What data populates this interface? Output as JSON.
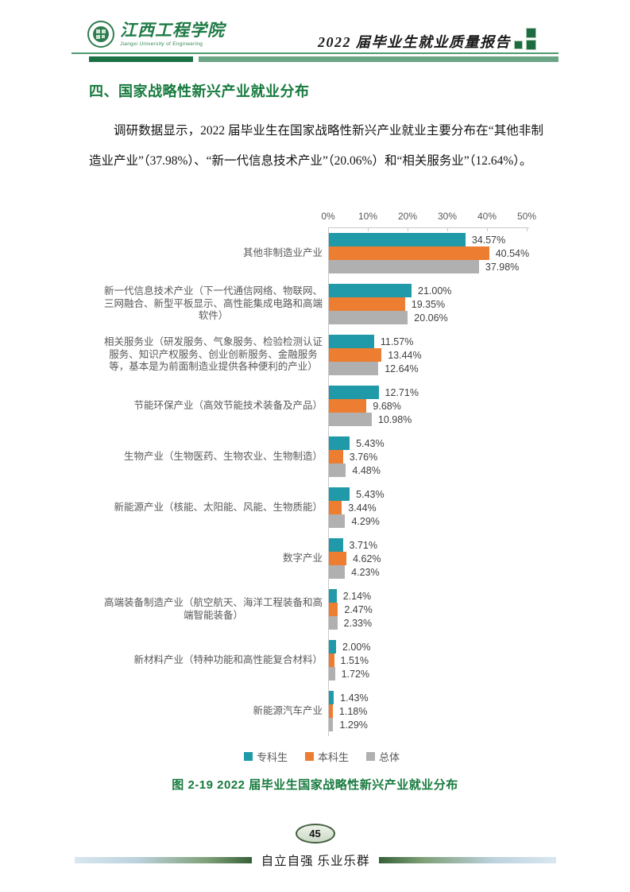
{
  "header": {
    "logo_cn": "江西工程学院",
    "logo_en": "Jiangxi University of Engineering",
    "report_title": "2022 届毕业生就业质量报告"
  },
  "section_title": "四、国家战略性新兴产业就业分布",
  "paragraph": "调研数据显示，2022 届毕业生在国家战略性新兴产业就业主要分布在“其他非制造业产业”（37.98%）、“新一代信息技术产业”（20.06%）和“相关服务业”（12.64%）。",
  "chart_data": {
    "type": "bar",
    "orientation": "horizontal-grouped",
    "title": "",
    "categories": [
      "其他非制造业产业",
      "新一代信息技术产业（下一代通信网络、物联网、三网融合、新型平板显示、高性能集成电路和高端软件）",
      "相关服务业（研发服务、气象服务、检验检测认证服务、知识产权服务、创业创新服务、金融服务等，基本是为前面制造业提供各种便利的产业）",
      "节能环保产业（高效节能技术装备及产品）",
      "生物产业（生物医药、生物农业、生物制造）",
      "新能源产业（核能、太阳能、风能、生物质能）",
      "数字产业",
      "高端装备制造产业（航空航天、海洋工程装备和高端智能装备）",
      "新材料产业（特种功能和高性能复合材料）",
      "新能源汽车产业"
    ],
    "series": [
      {
        "name": "专科生",
        "color": "#2099A8",
        "values": [
          34.57,
          21.0,
          11.57,
          12.71,
          5.43,
          5.43,
          3.71,
          2.14,
          2.0,
          1.43
        ]
      },
      {
        "name": "本科生",
        "color": "#EC7D31",
        "values": [
          40.54,
          19.35,
          13.44,
          9.68,
          3.76,
          3.44,
          4.62,
          2.47,
          1.51,
          1.18
        ]
      },
      {
        "name": "总体",
        "color": "#B1B0B0",
        "values": [
          37.98,
          20.06,
          12.64,
          10.98,
          4.48,
          4.29,
          4.23,
          2.33,
          1.72,
          1.29
        ]
      }
    ],
    "x_axis": {
      "position": "top",
      "min": 0,
      "max": 50,
      "ticks": [
        "0%",
        "10%",
        "20%",
        "30%",
        "40%",
        "50%"
      ]
    },
    "value_label_format": "two-decimal percent",
    "legend_position": "bottom",
    "grid": false
  },
  "caption": "图 2-19 2022 届毕业生国家战略性新兴产业就业分布",
  "page_number": "45",
  "footer_motto": "自立自强 乐业乐群",
  "theme": {
    "brand_green": "#177A3E",
    "header_hairline": "#4F9A71",
    "header_bar_dark": "#1B7044",
    "header_bar_sage": "#6BA585",
    "axis_gray": "#C9C9C9",
    "category_label_gray": "#595959",
    "value_label_gray": "#3F3F3F"
  }
}
